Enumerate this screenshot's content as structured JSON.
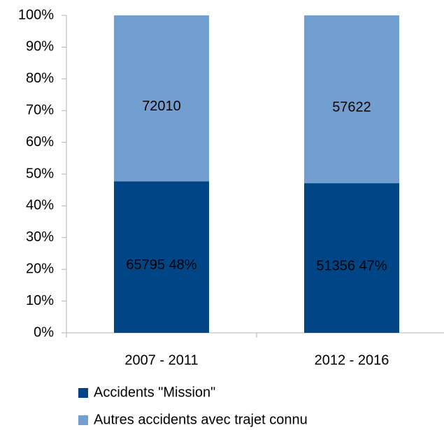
{
  "chart_data": {
    "type": "stacked_percent_bar",
    "categories": [
      "2007 - 2011",
      "2012 - 2016"
    ],
    "series": [
      {
        "name": "Accidents \"Mission\"",
        "color": "#004586",
        "values": [
          65795,
          51356
        ],
        "value_labels": [
          "65795 48%",
          "51356 47%"
        ]
      },
      {
        "name": "Autres accidents avec trajet connu",
        "color": "#729fcf",
        "values": [
          72010,
          57622
        ]
      }
    ],
    "ylim": [
      0,
      100
    ],
    "yticks": [
      {
        "value": 0,
        "label": "0%"
      },
      {
        "value": 10,
        "label": "10%"
      },
      {
        "value": 20,
        "label": "20%"
      },
      {
        "value": 30,
        "label": "30%"
      },
      {
        "value": 40,
        "label": "40%"
      },
      {
        "value": 50,
        "label": "50%"
      },
      {
        "value": 60,
        "label": "60%"
      },
      {
        "value": 70,
        "label": "70%"
      },
      {
        "value": 80,
        "label": "80%"
      },
      {
        "value": 90,
        "label": "90%"
      },
      {
        "value": 100,
        "label": "100%"
      }
    ],
    "grid": false,
    "legend": "bottom"
  }
}
